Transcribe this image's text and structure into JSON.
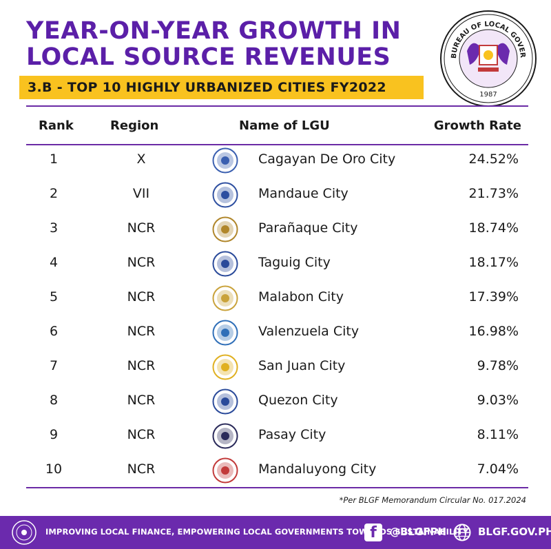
{
  "header": {
    "title_line1": "YEAR-ON-YEAR GROWTH IN",
    "title_line2": "LOCAL SOURCE REVENUES",
    "subtitle": "3.B - TOP 10 HIGHLY URBANIZED CITIES FY2022",
    "seal_text": "BUREAU OF LOCAL GOVERNMENT FINANCE",
    "seal_year": "1987"
  },
  "table": {
    "columns": [
      "Rank",
      "Region",
      "Name of LGU",
      "Growth Rate"
    ],
    "rows": [
      {
        "rank": "1",
        "region": "X",
        "name": "Cagayan De Oro City",
        "rate": "24.52%",
        "logo": "cagayan-de-oro-seal",
        "color": "#3a5fb0"
      },
      {
        "rank": "2",
        "region": "VII",
        "name": "Mandaue City",
        "rate": "21.73%",
        "logo": "mandaue-seal",
        "color": "#2e4fa0"
      },
      {
        "rank": "3",
        "region": "NCR",
        "name": "Parañaque City",
        "rate": "18.74%",
        "logo": "paranaque-seal",
        "color": "#b0862a"
      },
      {
        "rank": "4",
        "region": "NCR",
        "name": "Taguig City",
        "rate": "18.17%",
        "logo": "taguig-seal",
        "color": "#2a4a9a"
      },
      {
        "rank": "5",
        "region": "NCR",
        "name": "Malabon City",
        "rate": "17.39%",
        "logo": "malabon-seal",
        "color": "#c9a23a"
      },
      {
        "rank": "6",
        "region": "NCR",
        "name": "Valenzuela City",
        "rate": "16.98%",
        "logo": "valenzuela-seal",
        "color": "#2f6fb8"
      },
      {
        "rank": "7",
        "region": "NCR",
        "name": "San Juan City",
        "rate": "9.78%",
        "logo": "san-juan-seal",
        "color": "#e0b020"
      },
      {
        "rank": "8",
        "region": "NCR",
        "name": "Quezon City",
        "rate": "9.03%",
        "logo": "quezon-city-seal",
        "color": "#2a4a9a"
      },
      {
        "rank": "9",
        "region": "NCR",
        "name": "Pasay City",
        "rate": "8.11%",
        "logo": "pasay-seal",
        "color": "#2a2a5a"
      },
      {
        "rank": "10",
        "region": "NCR",
        "name": "Mandaluyong City",
        "rate": "7.04%",
        "logo": "mandaluyong-seal",
        "color": "#c23a3a"
      }
    ]
  },
  "note": "*Per BLGF Memorandum Circular No. 017.2024",
  "footer": {
    "tagline": "IMPROVING LOCAL FINANCE, EMPOWERING LOCAL GOVERNMENTS TOWARDS SUSTAINABILITY",
    "facebook_icon": "f",
    "facebook_handle": "@BLGFPH",
    "website": "BLGF.GOV.PH"
  },
  "colors": {
    "accent": "#6b2aad",
    "highlight": "#f9c21f"
  }
}
